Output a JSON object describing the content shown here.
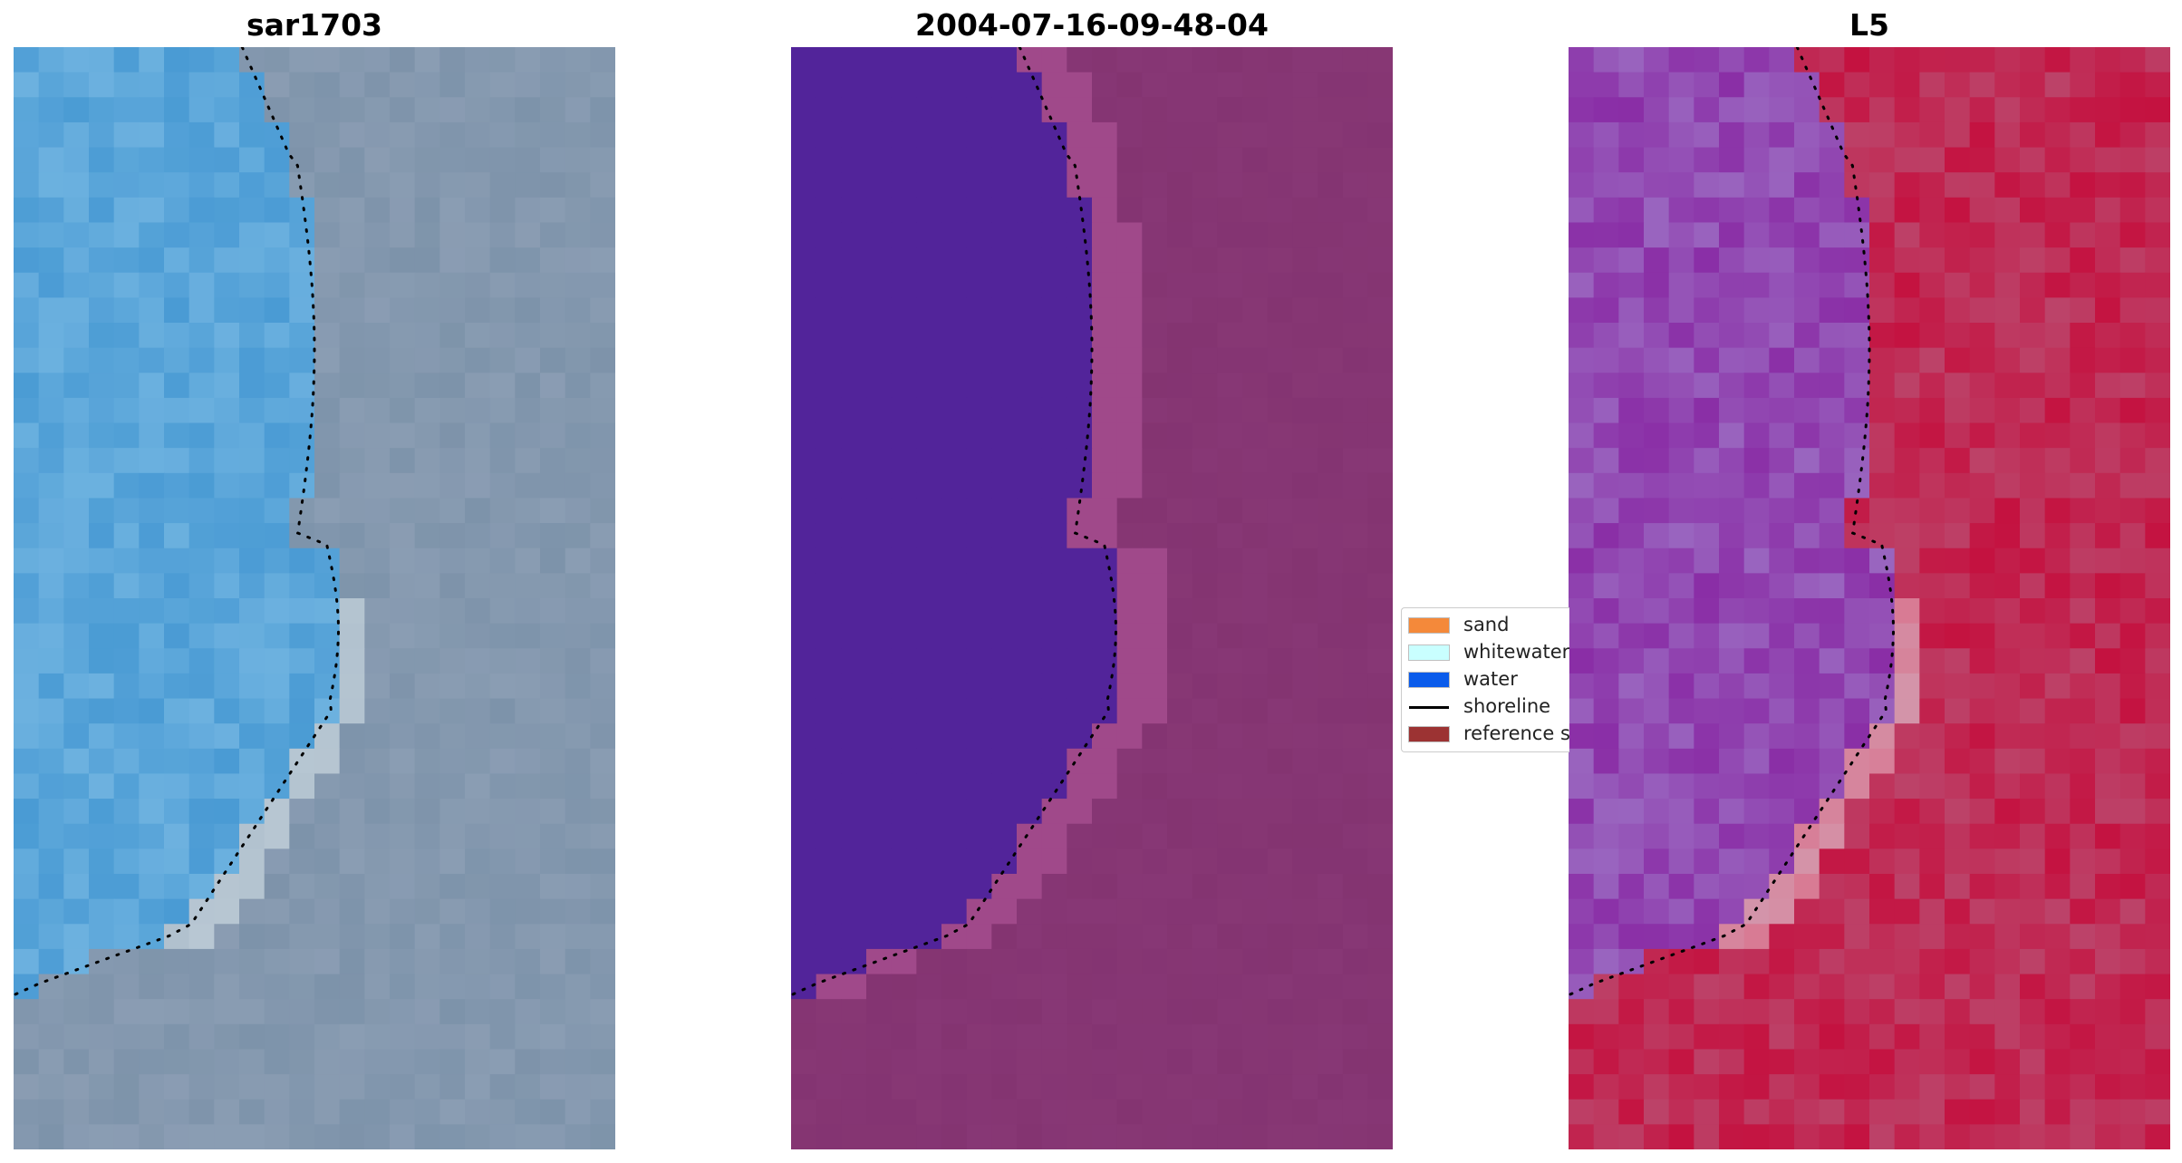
{
  "panels": [
    {
      "title": "sar1703"
    },
    {
      "title": "2004-07-16-09-48-04"
    },
    {
      "title": "L5"
    }
  ],
  "legend": {
    "items": [
      {
        "label": "sand",
        "color": "#f4893a",
        "kind": "patch"
      },
      {
        "label": "whitewater",
        "color": "#c9ffff",
        "kind": "patch"
      },
      {
        "label": "water",
        "color": "#0b5ceb",
        "kind": "patch"
      },
      {
        "label": "shoreline",
        "color": "#000000",
        "kind": "line"
      },
      {
        "label": "reference s",
        "color": "#9c3333",
        "kind": "patch"
      }
    ]
  },
  "colors": {
    "rgb_water": "#4a9bd4",
    "rgb_land": "#7d93aa",
    "class_water": "#52249a",
    "class_land": "#8a3a78",
    "index_water": "#8a2ea6",
    "index_land": "#c41240"
  }
}
